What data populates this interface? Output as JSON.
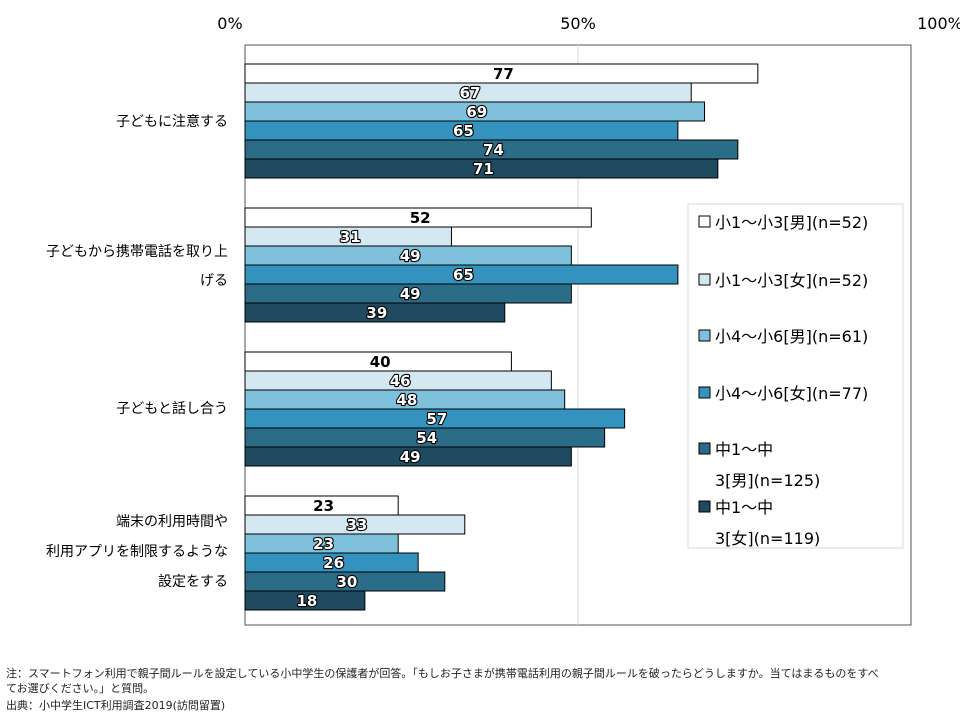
{
  "chart_data": {
    "type": "bar",
    "orientation": "horizontal",
    "x_ticks": [
      "0%",
      "50%",
      "100%"
    ],
    "xlim": [
      0,
      100
    ],
    "grid": true,
    "legend_position": "right",
    "categories": [
      [
        "子どもに注意する"
      ],
      [
        "子どもから携帯電話を取り上",
        "げる"
      ],
      [
        "子どもと話し合う"
      ],
      [
        "端末の利用時間や",
        "利用アプリを制限するような",
        "設定をする"
      ]
    ],
    "series": [
      {
        "name": "小1～小3[男](n=52)",
        "legend_lines": [
          "小1～小3[男](n=52)"
        ],
        "color": "#ffffff",
        "label_style": "plain",
        "values": [
          77,
          52,
          40,
          23
        ]
      },
      {
        "name": "小1～小3[女](n=52)",
        "legend_lines": [
          "小1～小3[女](n=52)"
        ],
        "color": "#d3e8f1",
        "label_style": "white-outline",
        "values": [
          67,
          31,
          46,
          33
        ]
      },
      {
        "name": "小4～小6[男](n=61)",
        "legend_lines": [
          "小4～小6[男](n=61)"
        ],
        "color": "#7fc0dd",
        "label_style": "white-outline",
        "values": [
          69,
          49,
          48,
          23
        ]
      },
      {
        "name": "小4～小6[女](n=77)",
        "legend_lines": [
          "小4～小6[女](n=77)"
        ],
        "color": "#3493be",
        "label_style": "white-outline",
        "values": [
          65,
          65,
          57,
          26
        ]
      },
      {
        "name": "中1～中3[男](n=125)",
        "legend_lines": [
          "中1～中",
          "3[男](n=125)"
        ],
        "color": "#2b6d88",
        "label_style": "white-outline",
        "values": [
          74,
          49,
          54,
          30
        ]
      },
      {
        "name": "中1～中3[女](n=119)",
        "legend_lines": [
          "中1～中",
          "3[女](n=119)"
        ],
        "color": "#1f4a60",
        "label_style": "white-outline",
        "values": [
          71,
          39,
          49,
          18
        ]
      }
    ]
  },
  "notes": {
    "line1": "注：スマートフォン利用で親子間ルールを設定している小中学生の保護者が回答。「もしお子さまが携帯電話利用の親子間ルールを破ったらどうしますか。当てはまるものをすべ",
    "line2": "てお選びください。」と質問。",
    "line3": "出典：小中学生ICT利用調査2019(訪問留置)"
  }
}
